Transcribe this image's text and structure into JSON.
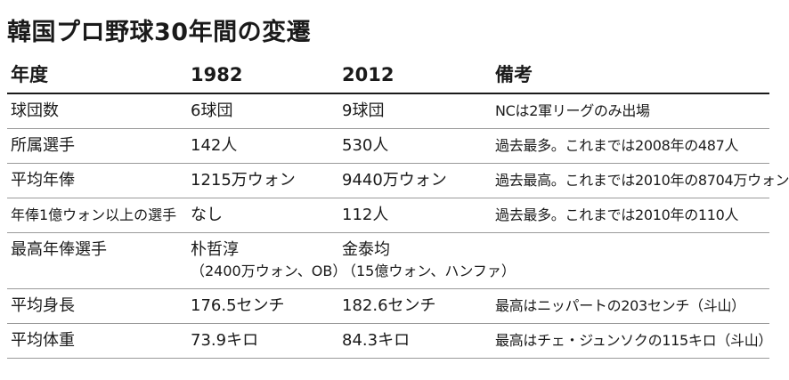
{
  "title": "韓国プロ野球30年間の変遷",
  "table": {
    "headers": [
      "年度",
      "1982",
      "2012",
      "備考"
    ],
    "rows": [
      {
        "label": "球団数",
        "y1982": "6球団",
        "y2012": "9球団",
        "note": "NCは2軍リーグのみ出場"
      },
      {
        "label": "所属選手",
        "y1982": "142人",
        "y2012": "530人",
        "note": "過去最多。これまでは2008年の487人"
      },
      {
        "label": "平均年俸",
        "y1982": "1215万ウォン",
        "y2012": "9440万ウォン",
        "note": "過去最高。これまでは2010年の8704万ウォン"
      },
      {
        "label": "年俸1億ウォン以上の選手",
        "y1982": "なし",
        "y2012": "112人",
        "note": "過去最多。これまでは2010年の110人"
      },
      {
        "label": "最高年俸選手",
        "y1982": "朴哲淳",
        "y1982_sub": "（2400万ウォン、OB）",
        "y2012": "金泰均",
        "y2012_sub": "（15億ウォン、ハンファ）",
        "note": ""
      },
      {
        "label": "平均身長",
        "y1982": "176.5センチ",
        "y2012": "182.6センチ",
        "note": "最高はニッパートの203センチ（斗山）"
      },
      {
        "label": "平均体重",
        "y1982": "73.9キロ",
        "y2012": "84.3キロ",
        "note": "最高はチェ・ジュンソクの115キロ（斗山）"
      }
    ]
  }
}
